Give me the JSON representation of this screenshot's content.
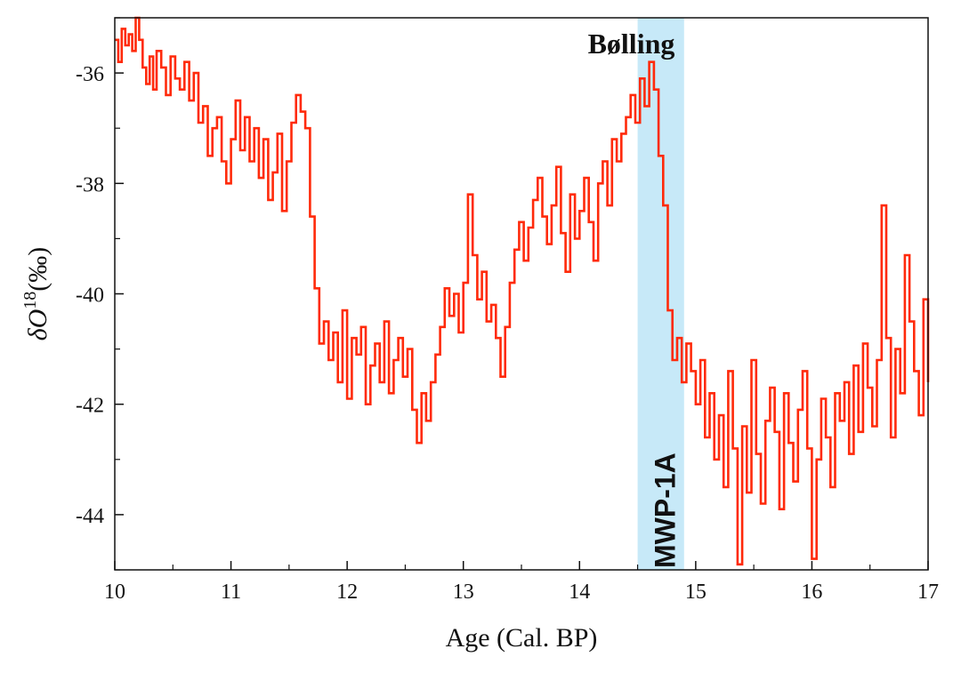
{
  "chart_data": {
    "type": "line",
    "title": "",
    "xlabel": "Age  (Cal. BP)",
    "ylabel_prefix": "δO",
    "ylabel_sup": "18",
    "ylabel_suffix": "(‰)",
    "xlim": [
      10,
      17
    ],
    "ylim": [
      -45,
      -35
    ],
    "y_inverted": true,
    "xticks": [
      10,
      11,
      12,
      13,
      14,
      15,
      16,
      17
    ],
    "yticks": [
      -36,
      -38,
      -40,
      -42,
      -44
    ],
    "ytick_labels": [
      "-36",
      "-38",
      "-40",
      "-42",
      "-44"
    ],
    "grid": false,
    "series": [
      {
        "name": "δO18",
        "color": "#ff2a0a",
        "step": true,
        "x": [
          10.0,
          10.03,
          10.06,
          10.09,
          10.12,
          10.15,
          10.18,
          10.21,
          10.24,
          10.27,
          10.3,
          10.33,
          10.36,
          10.4,
          10.44,
          10.48,
          10.52,
          10.56,
          10.6,
          10.64,
          10.68,
          10.72,
          10.76,
          10.8,
          10.84,
          10.88,
          10.92,
          10.96,
          11.0,
          11.04,
          11.08,
          11.12,
          11.16,
          11.2,
          11.24,
          11.28,
          11.32,
          11.36,
          11.4,
          11.44,
          11.48,
          11.52,
          11.56,
          11.6,
          11.64,
          11.68,
          11.72,
          11.76,
          11.8,
          11.84,
          11.88,
          11.92,
          11.96,
          12.0,
          12.04,
          12.08,
          12.12,
          12.16,
          12.2,
          12.24,
          12.28,
          12.32,
          12.36,
          12.4,
          12.44,
          12.48,
          12.52,
          12.56,
          12.6,
          12.64,
          12.68,
          12.72,
          12.76,
          12.8,
          12.84,
          12.88,
          12.92,
          12.96,
          13.0,
          13.04,
          13.08,
          13.12,
          13.16,
          13.2,
          13.24,
          13.28,
          13.32,
          13.36,
          13.4,
          13.44,
          13.48,
          13.52,
          13.56,
          13.6,
          13.64,
          13.68,
          13.72,
          13.76,
          13.8,
          13.84,
          13.88,
          13.92,
          13.96,
          14.0,
          14.04,
          14.08,
          14.12,
          14.16,
          14.2,
          14.24,
          14.28,
          14.32,
          14.36,
          14.4,
          14.44,
          14.48,
          14.52,
          14.56,
          14.6,
          14.64,
          14.68,
          14.72,
          14.76,
          14.8,
          14.84,
          14.88,
          14.92,
          14.96,
          15.0,
          15.04,
          15.08,
          15.12,
          15.16,
          15.2,
          15.24,
          15.28,
          15.32,
          15.36,
          15.4,
          15.44,
          15.48,
          15.52,
          15.56,
          15.6,
          15.64,
          15.68,
          15.72,
          15.76,
          15.8,
          15.84,
          15.88,
          15.92,
          15.96,
          16.0,
          16.04,
          16.08,
          16.12,
          16.16,
          16.2,
          16.24,
          16.28,
          16.32,
          16.36,
          16.4,
          16.44,
          16.48,
          16.52,
          16.56,
          16.6,
          16.64,
          16.68,
          16.72,
          16.76,
          16.8,
          16.84,
          16.88,
          16.92,
          16.96,
          17.0
        ],
        "y": [
          -35.4,
          -35.8,
          -35.2,
          -35.5,
          -35.3,
          -35.6,
          -35.0,
          -35.4,
          -35.9,
          -36.2,
          -35.7,
          -36.3,
          -35.6,
          -35.9,
          -36.4,
          -35.7,
          -36.1,
          -36.3,
          -35.8,
          -36.5,
          -36.0,
          -36.9,
          -36.6,
          -37.5,
          -37.0,
          -36.8,
          -37.6,
          -38.0,
          -37.2,
          -36.5,
          -37.4,
          -36.8,
          -37.6,
          -37.0,
          -37.9,
          -37.2,
          -38.3,
          -37.8,
          -37.1,
          -38.5,
          -37.6,
          -36.9,
          -36.4,
          -36.7,
          -37.0,
          -38.6,
          -39.9,
          -40.9,
          -40.5,
          -41.2,
          -40.7,
          -41.6,
          -40.3,
          -41.9,
          -40.8,
          -41.1,
          -40.6,
          -42.0,
          -41.3,
          -40.9,
          -41.6,
          -40.5,
          -41.8,
          -41.2,
          -40.8,
          -41.5,
          -41.0,
          -42.1,
          -42.7,
          -41.8,
          -42.3,
          -41.6,
          -41.1,
          -40.6,
          -39.9,
          -40.4,
          -40.0,
          -40.7,
          -39.8,
          -38.2,
          -39.3,
          -40.1,
          -39.6,
          -40.5,
          -40.2,
          -40.8,
          -41.5,
          -40.6,
          -39.8,
          -39.2,
          -38.7,
          -39.4,
          -38.8,
          -38.3,
          -37.9,
          -38.6,
          -39.1,
          -38.4,
          -37.7,
          -38.9,
          -39.6,
          -38.2,
          -39.0,
          -38.5,
          -37.9,
          -38.7,
          -39.4,
          -38.0,
          -37.6,
          -38.4,
          -37.2,
          -37.6,
          -37.1,
          -36.8,
          -36.4,
          -36.9,
          -36.1,
          -36.6,
          -35.8,
          -36.3,
          -37.5,
          -38.4,
          -40.3,
          -41.2,
          -40.8,
          -41.6,
          -40.9,
          -41.4,
          -42.0,
          -41.2,
          -42.6,
          -41.8,
          -43.0,
          -42.2,
          -43.5,
          -41.4,
          -42.8,
          -44.9,
          -42.4,
          -43.6,
          -41.2,
          -42.9,
          -43.8,
          -42.3,
          -41.7,
          -42.5,
          -43.9,
          -41.8,
          -42.7,
          -43.4,
          -42.1,
          -41.4,
          -42.8,
          -44.8,
          -43.0,
          -41.9,
          -42.6,
          -43.5,
          -41.8,
          -42.3,
          -41.6,
          -42.9,
          -41.3,
          -42.5,
          -40.9,
          -41.7,
          -42.4,
          -41.2,
          -38.4,
          -40.8,
          -42.6,
          -41.0,
          -41.8,
          -39.3,
          -40.5,
          -41.4,
          -42.2,
          -40.1,
          -41.6
        ]
      }
    ],
    "highlight_band": {
      "x_from": 14.5,
      "x_to": 14.9,
      "color": "#c7e9f8"
    },
    "annotations": [
      {
        "id": "bolling",
        "text": "Bølling",
        "x": 14.5,
        "y": -35.3
      },
      {
        "id": "mwp",
        "text": "MWP-1A",
        "x": 14.7,
        "y": -44.9,
        "rotate": -90
      }
    ]
  }
}
